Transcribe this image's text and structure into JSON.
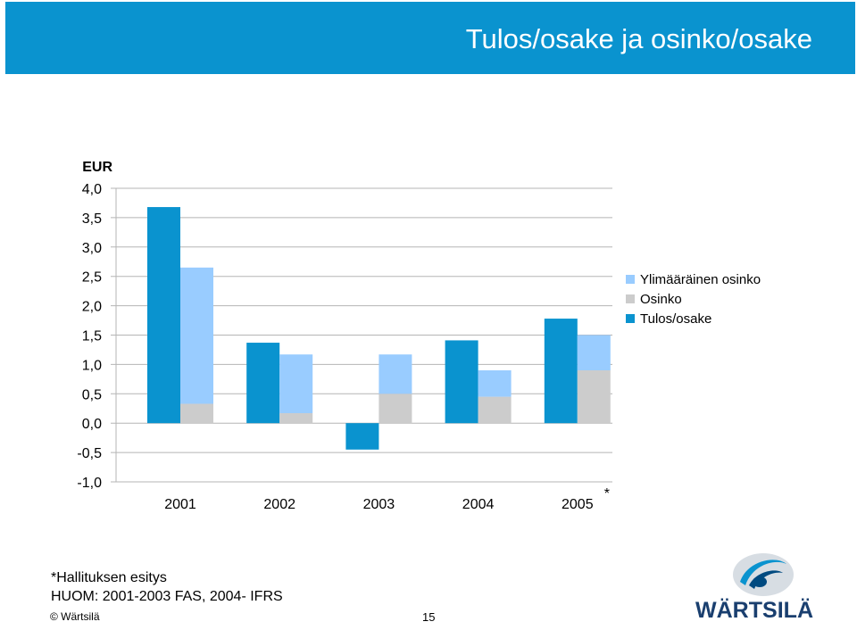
{
  "slide": {
    "title": "Tulos/osake ja osinko/osake",
    "footnote_1": "*Hallituksen esitys",
    "footnote_2": "HUOM: 2001-2003 FAS, 2004- IFRS",
    "copyright": "© Wärtsilä",
    "page_number": "15",
    "logo_text": "WÄRTSILÄ"
  },
  "chart_data": {
    "type": "bar",
    "unit_label": "EUR",
    "categories": [
      "2001",
      "2002",
      "2003",
      "2004",
      "2005"
    ],
    "category_marks": [
      "",
      "",
      "",
      "",
      "*"
    ],
    "ylim": [
      -1.0,
      4.0
    ],
    "yticks": [
      "4,0",
      "3,5",
      "3,0",
      "2,5",
      "2,0",
      "1,5",
      "1,0",
      "0,5",
      "0,0",
      "-0,5",
      "-1,0"
    ],
    "series": [
      {
        "name": "Tulos/osake",
        "color": "#0a93cf",
        "values": [
          3.68,
          1.37,
          -0.45,
          1.41,
          1.78
        ]
      },
      {
        "name": "Osinko",
        "color": "#cccccc",
        "values": [
          0.33,
          0.17,
          0.5,
          0.45,
          0.9
        ]
      },
      {
        "name": "Ylimääräinen osinko",
        "color": "#99ccff",
        "values": [
          2.32,
          1.0,
          0.67,
          0.45,
          0.6
        ]
      }
    ],
    "legend": [
      "Ylimääräinen osinko",
      "Osinko",
      "Tulos/osake"
    ],
    "legend_position": "right",
    "grid": true,
    "colors": {
      "header": "#0a93cf",
      "eps": "#0a93cf",
      "dividend": "#cccccc",
      "extra_dividend": "#99ccff"
    }
  }
}
